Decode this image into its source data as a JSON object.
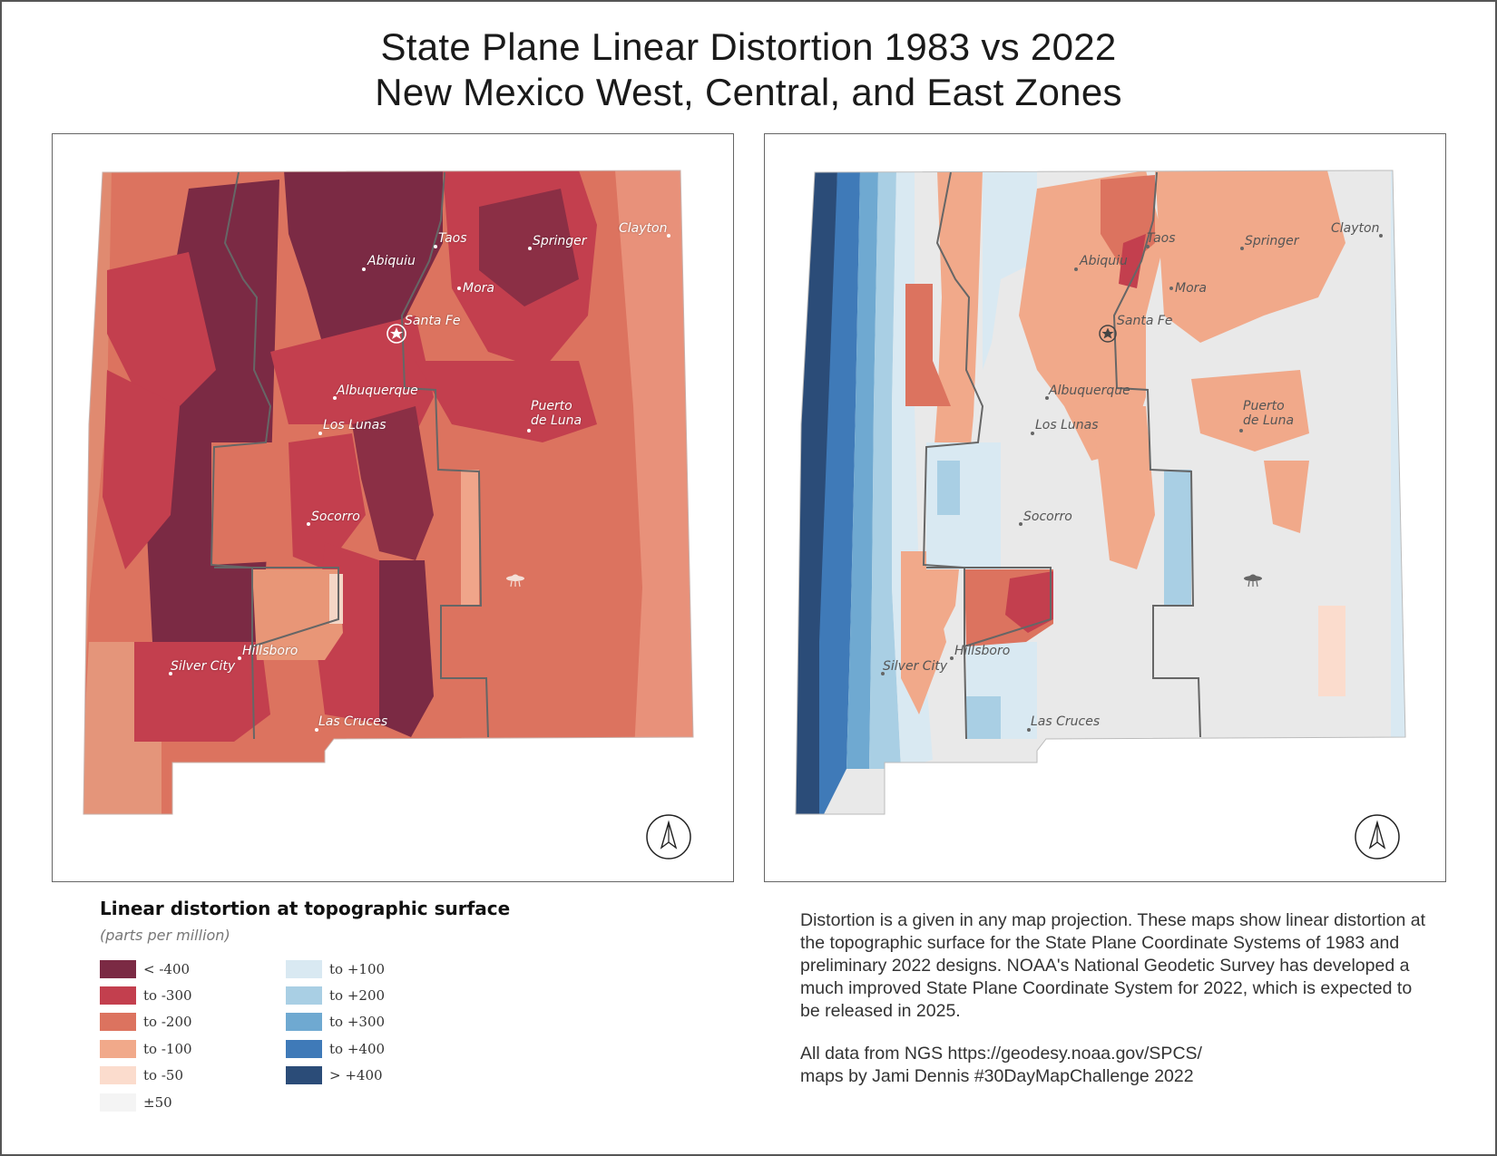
{
  "title": {
    "line1": "State Plane Linear Distortion 1983 vs 2022",
    "line2": "New Mexico West, Central, and East Zones"
  },
  "cities": [
    {
      "name": "Taos"
    },
    {
      "name": "Springer"
    },
    {
      "name": "Clayton"
    },
    {
      "name": "Abiquiu"
    },
    {
      "name": "Mora"
    },
    {
      "name": "Santa Fe"
    },
    {
      "name": "Albuquerque"
    },
    {
      "name": "Los Lunas"
    },
    {
      "name": "Puerto\nde Luna"
    },
    {
      "name": "Socorro"
    },
    {
      "name": "Hillsboro"
    },
    {
      "name": "Silver City"
    },
    {
      "name": "Las Cruces"
    }
  ],
  "maps": {
    "left": {
      "year": "1983"
    },
    "right": {
      "year": "2022"
    },
    "icons": [
      "ufo-icon",
      "north-arrow-icon",
      "capital-star-icon"
    ]
  },
  "legend": {
    "title": "Linear distortion at topographic surface",
    "subtitle": "(parts per million)",
    "items": [
      {
        "label": "< -400",
        "color": "#7b2a44"
      },
      {
        "label": "to -300",
        "color": "#c33f4e"
      },
      {
        "label": "to -200",
        "color": "#dc735f"
      },
      {
        "label": "to -100",
        "color": "#f1a98a"
      },
      {
        "label": "to -50",
        "color": "#fbdccd"
      },
      {
        "label": "±50",
        "color": "#f4f4f4"
      },
      {
        "label": "to +100",
        "color": "#d9e9f2"
      },
      {
        "label": "to +200",
        "color": "#a9cfe4"
      },
      {
        "label": "to +300",
        "color": "#6fa9d1"
      },
      {
        "label": "to +400",
        "color": "#3f7ab8"
      },
      {
        "label": "> +400",
        "color": "#2b4c78"
      }
    ]
  },
  "description": {
    "paragraph1": "Distortion is a given in any map projection. These maps show linear distortion at the topographic surface for the State Plane Coordinate Systems of 1983 and preliminary 2022 designs. NOAA's National Geodetic Survey has developed a much improved State Plane Coordinate System for 2022, which is expected to be released in 2025.",
    "paragraph2": "All data from NGS https://geodesy.noaa.gov/SPCS/\nmaps by Jami Dennis #30DayMapChallenge 2022"
  }
}
